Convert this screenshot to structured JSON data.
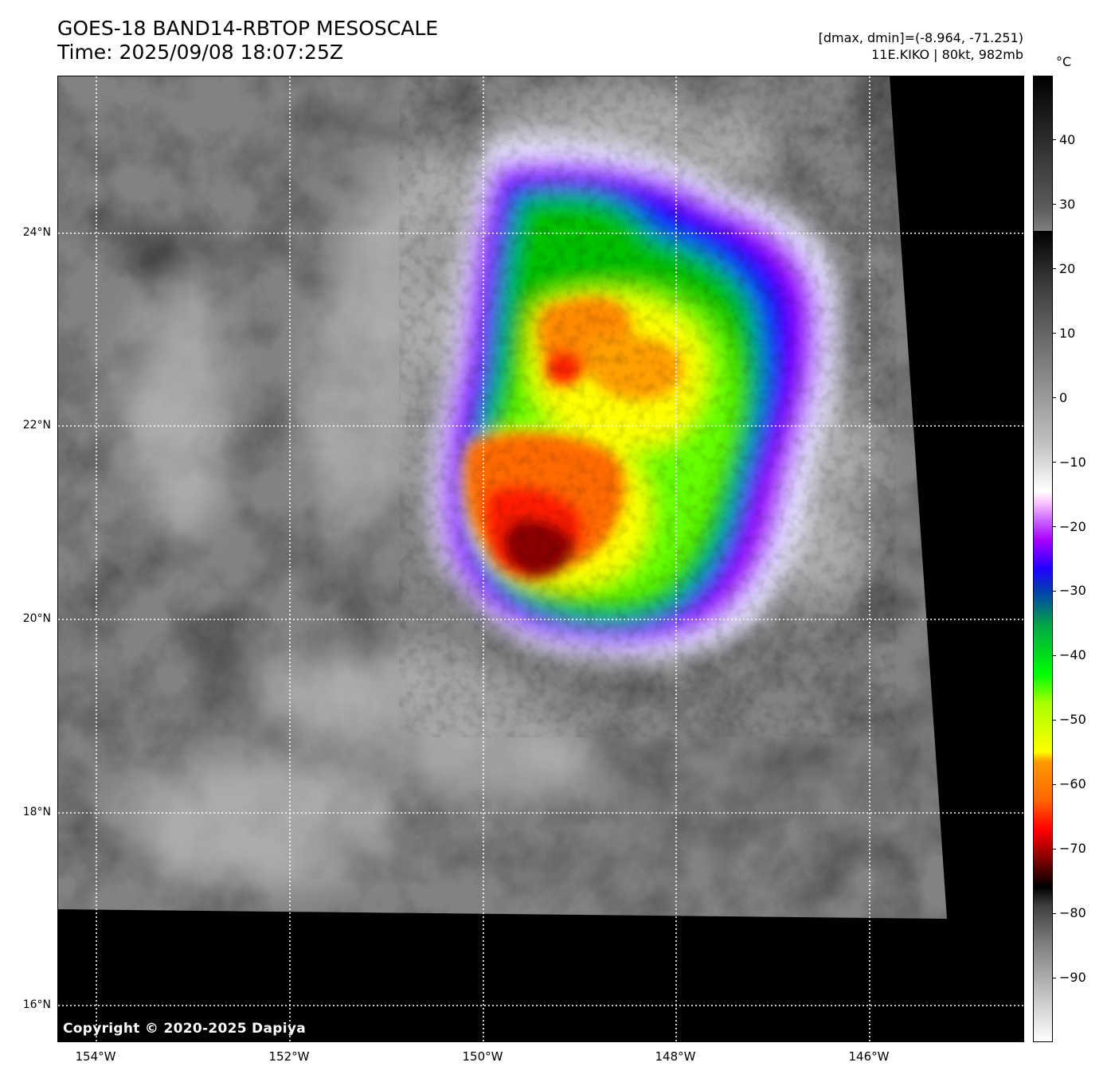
{
  "title": {
    "line1": "GOES-18 BAND14-RBTOP MESOSCALE",
    "line2": "Time: 2025/09/08 18:07:25Z"
  },
  "stats": {
    "line1": "[dmax, dmin]=(-8.964, -71.251)",
    "line2": "11E.KIKO | 80kt, 982mb"
  },
  "copyright": "Copyright © 2020-2025 Dapiya",
  "map": {
    "latitude_labels": [
      {
        "label": "24°N",
        "lat": 24
      },
      {
        "label": "22°N",
        "lat": 22
      },
      {
        "label": "20°N",
        "lat": 20
      },
      {
        "label": "18°N",
        "lat": 18
      },
      {
        "label": "16°N",
        "lat": 16
      }
    ],
    "longitude_labels": [
      {
        "label": "154°W",
        "lon": -154
      },
      {
        "label": "152°W",
        "lon": -152
      },
      {
        "label": "150°W",
        "lon": -150
      },
      {
        "label": "148°W",
        "lon": -148
      },
      {
        "label": "146°W",
        "lon": -146
      }
    ],
    "gridlines": "dotted white"
  },
  "colorbar": {
    "unit": "°C",
    "range": [
      -100,
      50
    ],
    "ticks": [
      "40",
      "30",
      "20",
      "10",
      "0",
      "−10",
      "−20",
      "−30",
      "−40",
      "−50",
      "−60",
      "−70",
      "−80",
      "−90"
    ],
    "tick_values": [
      40,
      30,
      20,
      10,
      0,
      -10,
      -20,
      -30,
      -40,
      -50,
      -60,
      -70,
      -80,
      -90
    ]
  }
}
